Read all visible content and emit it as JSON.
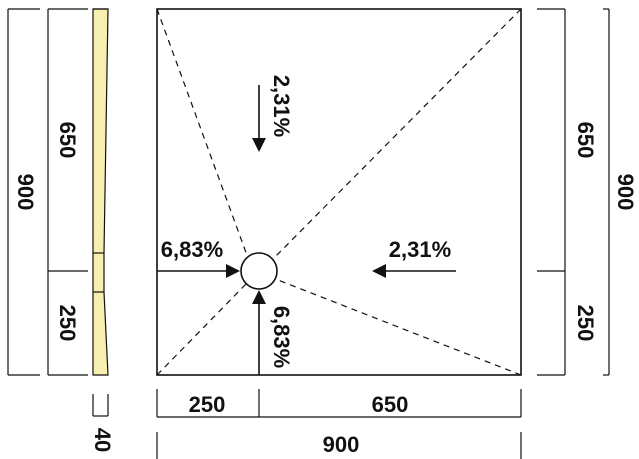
{
  "colors": {
    "ink": "#111111",
    "profile_fill": "#f6efb0",
    "background": "#ffffff"
  },
  "left_dims": {
    "total": "900",
    "upper": "650",
    "lower": "250",
    "thickness": "40"
  },
  "right_dims": {
    "total": "900",
    "upper": "650",
    "lower": "250"
  },
  "bottom_dims": {
    "left": "250",
    "right": "650",
    "total": "900"
  },
  "slopes": {
    "top": "2,31%",
    "right": "2,31%",
    "left": "6,83%",
    "bottom": "6,83%"
  },
  "icons": {
    "drain": "drain-circle-icon",
    "arrows": "slope-arrow-icon"
  }
}
